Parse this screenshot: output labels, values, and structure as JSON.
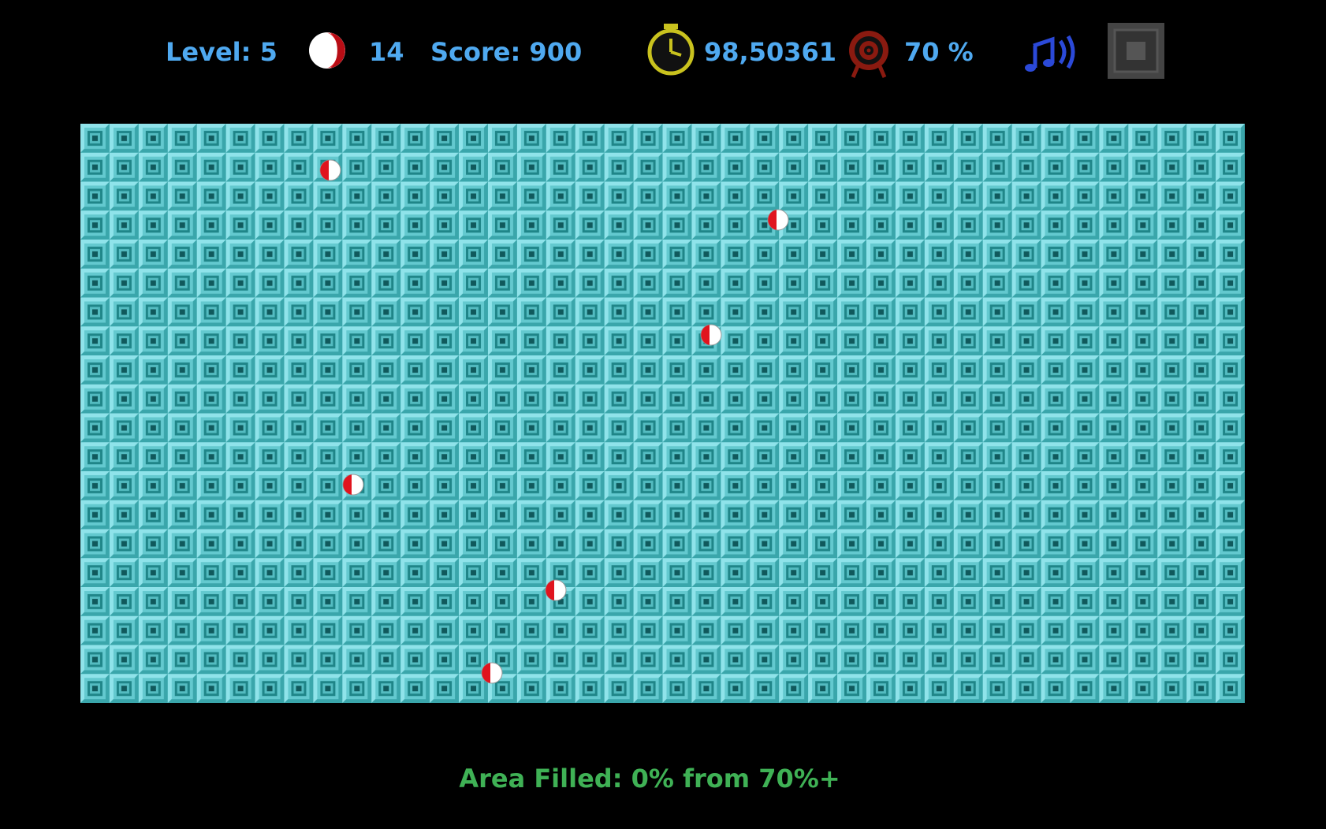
{
  "hud": {
    "level": "Level: 5",
    "lives": "14",
    "score": "Score: 900",
    "time": "98,50361",
    "target": "70 %"
  },
  "footer": {
    "status": "Area Filled: 0% from 70%+"
  }
}
